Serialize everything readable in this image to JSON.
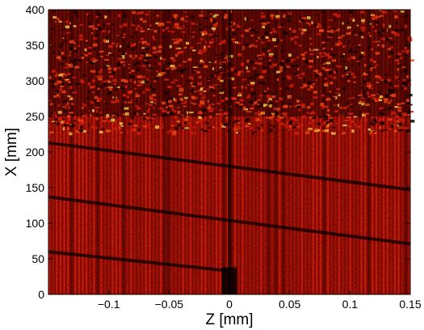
{
  "chart_data": {
    "type": "heatmap",
    "title": "",
    "xlabel": "Z [mm]",
    "ylabel": "X [mm]",
    "xlim": [
      -0.15,
      0.15
    ],
    "ylim": [
      0,
      400
    ],
    "x_ticks": [
      -0.1,
      -0.05,
      0,
      0.05,
      0.1,
      0.15
    ],
    "x_tick_labels": [
      "−0.1",
      "−0.05",
      "0",
      "0.05",
      "0.1",
      "0.15"
    ],
    "y_ticks": [
      0,
      50,
      100,
      150,
      200,
      250,
      300,
      350,
      400
    ],
    "y_tick_labels": [
      "0",
      "50",
      "100",
      "150",
      "200",
      "250",
      "300",
      "350",
      "400"
    ],
    "colormap": "black-red-yellow",
    "colors": {
      "dark": "#1a0000",
      "mid": "#8a0c04",
      "bright": "#e4200c",
      "hot": "#ffd24a"
    },
    "grid": false,
    "features": {
      "dark_diagonal_lines": [
        {
          "z_start": -0.15,
          "x_start": 213,
          "z_end": 0.15,
          "x_end": 147
        },
        {
          "z_start": -0.15,
          "x_start": 137,
          "z_end": 0.15,
          "x_end": 71
        },
        {
          "z_start": -0.15,
          "x_start": 60,
          "z_end": 0.0,
          "x_end": 33
        }
      ],
      "dark_vertical_line_z": 0.0,
      "dark_block": {
        "z_from": -0.005,
        "z_to": 0.005,
        "x_from": 0,
        "x_to": 38
      },
      "speckle_region_x_from": 250
    }
  }
}
